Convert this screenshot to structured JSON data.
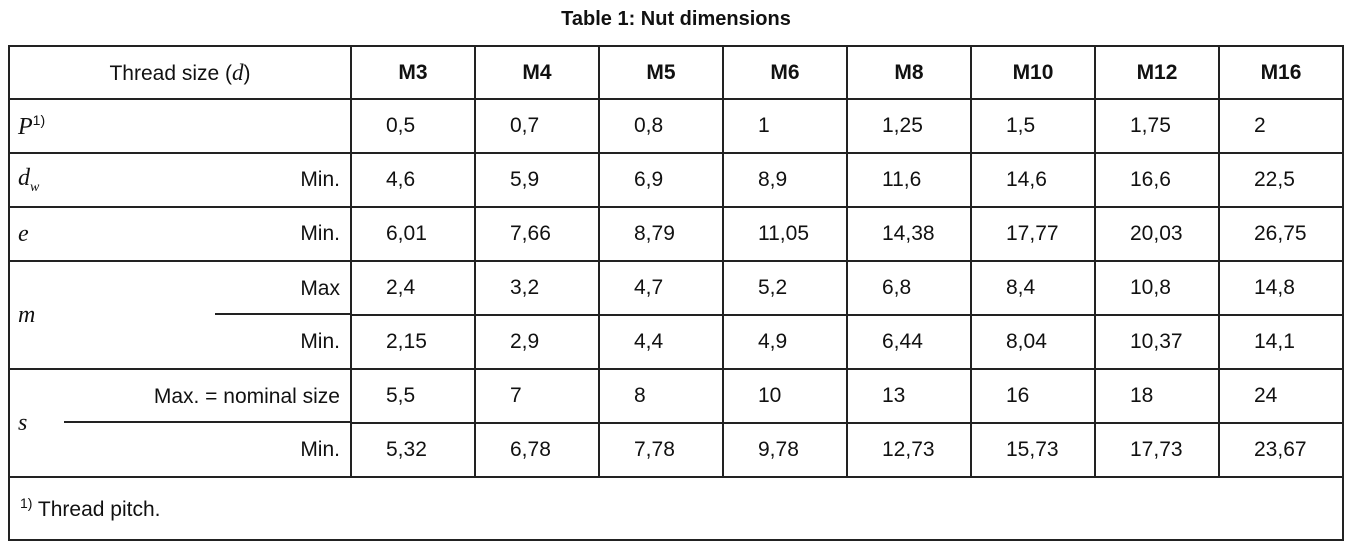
{
  "title": "Table 1: Nut dimensions",
  "table": {
    "header": {
      "label": [
        "Thread size (",
        "d",
        ")"
      ],
      "sizes": [
        "M3",
        "M4",
        "M5",
        "M6",
        "M8",
        "M10",
        "M12",
        "M16"
      ]
    },
    "rows": [
      {
        "symbol": "P",
        "superscript": "1)",
        "values": [
          "0,5",
          "0,7",
          "0,8",
          "1",
          "1,25",
          "1,5",
          "1,75",
          "2"
        ]
      },
      {
        "symbol": "d",
        "subscript": "w",
        "qualifier": "Min.",
        "values": [
          "4,6",
          "5,9",
          "6,9",
          "8,9",
          "11,6",
          "14,6",
          "16,6",
          "22,5"
        ]
      },
      {
        "symbol": "e",
        "qualifier": "Min.",
        "values": [
          "6,01",
          "7,66",
          "8,79",
          "11,05",
          "14,38",
          "17,77",
          "20,03",
          "26,75"
        ]
      },
      {
        "symbol": "m",
        "qualifier": "Max",
        "values": [
          "2,4",
          "3,2",
          "4,7",
          "5,2",
          "6,8",
          "8,4",
          "10,8",
          "14,8"
        ]
      },
      {
        "qualifier": "Min.",
        "values": [
          "2,15",
          "2,9",
          "4,4",
          "4,9",
          "6,44",
          "8,04",
          "10,37",
          "14,1"
        ]
      },
      {
        "symbol": "s",
        "qualifier": "Max. = nominal size",
        "values": [
          "5,5",
          "7",
          "8",
          "10",
          "13",
          "16",
          "18",
          "24"
        ]
      },
      {
        "qualifier": "Min.",
        "values": [
          "5,32",
          "6,78",
          "7,78",
          "9,78",
          "12,73",
          "15,73",
          "17,73",
          "23,67"
        ]
      }
    ],
    "footnote": {
      "marker": "1)",
      "text": "Thread pitch."
    }
  }
}
